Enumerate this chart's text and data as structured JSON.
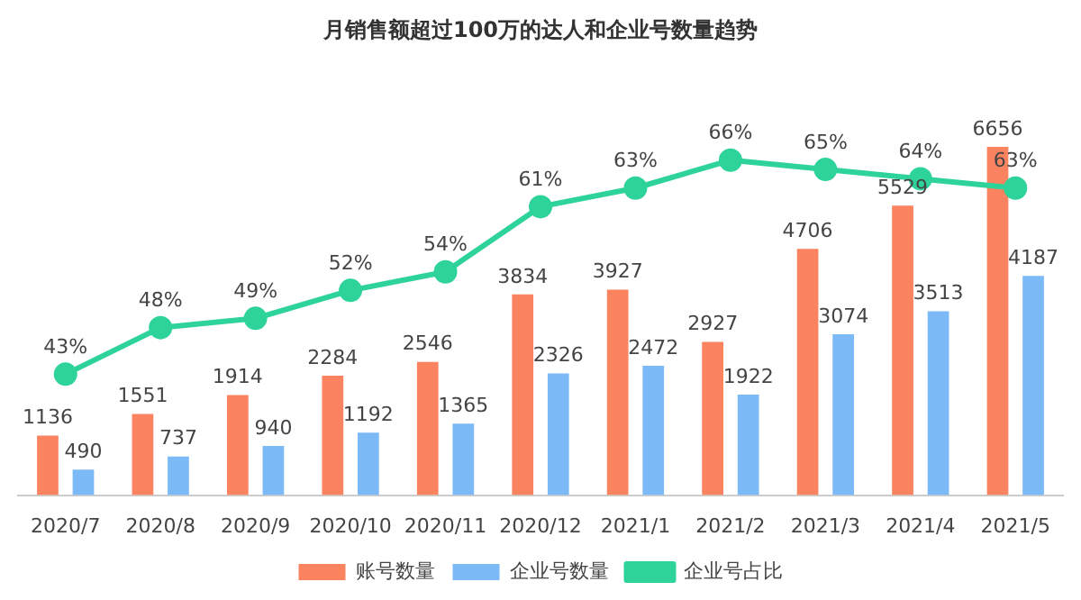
{
  "chart_data": {
    "type": "bar",
    "title": "月销售额超过100万的达人和企业号数量趋势",
    "categories": [
      "2020/7",
      "2020/8",
      "2020/9",
      "2020/10",
      "2020/11",
      "2020/12",
      "2021/1",
      "2021/2",
      "2021/3",
      "2021/4",
      "2021/5"
    ],
    "series": [
      {
        "name": "账号数量",
        "color": "#fb8360",
        "values": [
          1136,
          1551,
          1914,
          2284,
          2546,
          3834,
          3927,
          2927,
          4706,
          5529,
          6656
        ]
      },
      {
        "name": "企业号数量",
        "color": "#7cb9f7",
        "values": [
          490,
          737,
          940,
          1192,
          1365,
          2326,
          2472,
          1922,
          3074,
          3513,
          4187
        ]
      },
      {
        "name": "企业号占比",
        "type": "line",
        "axis": "y2",
        "color": "#2ed39a",
        "values": [
          43,
          48,
          49,
          52,
          54,
          61,
          63,
          66,
          65,
          64,
          63
        ],
        "value_labels": [
          "43%",
          "48%",
          "49%",
          "52%",
          "54%",
          "61%",
          "63%",
          "66%",
          "65%",
          "64%",
          "63%"
        ]
      }
    ],
    "data_labels": true,
    "tick_labels": "x",
    "legend": "bottom",
    "grid": false,
    "marker": "circle"
  }
}
